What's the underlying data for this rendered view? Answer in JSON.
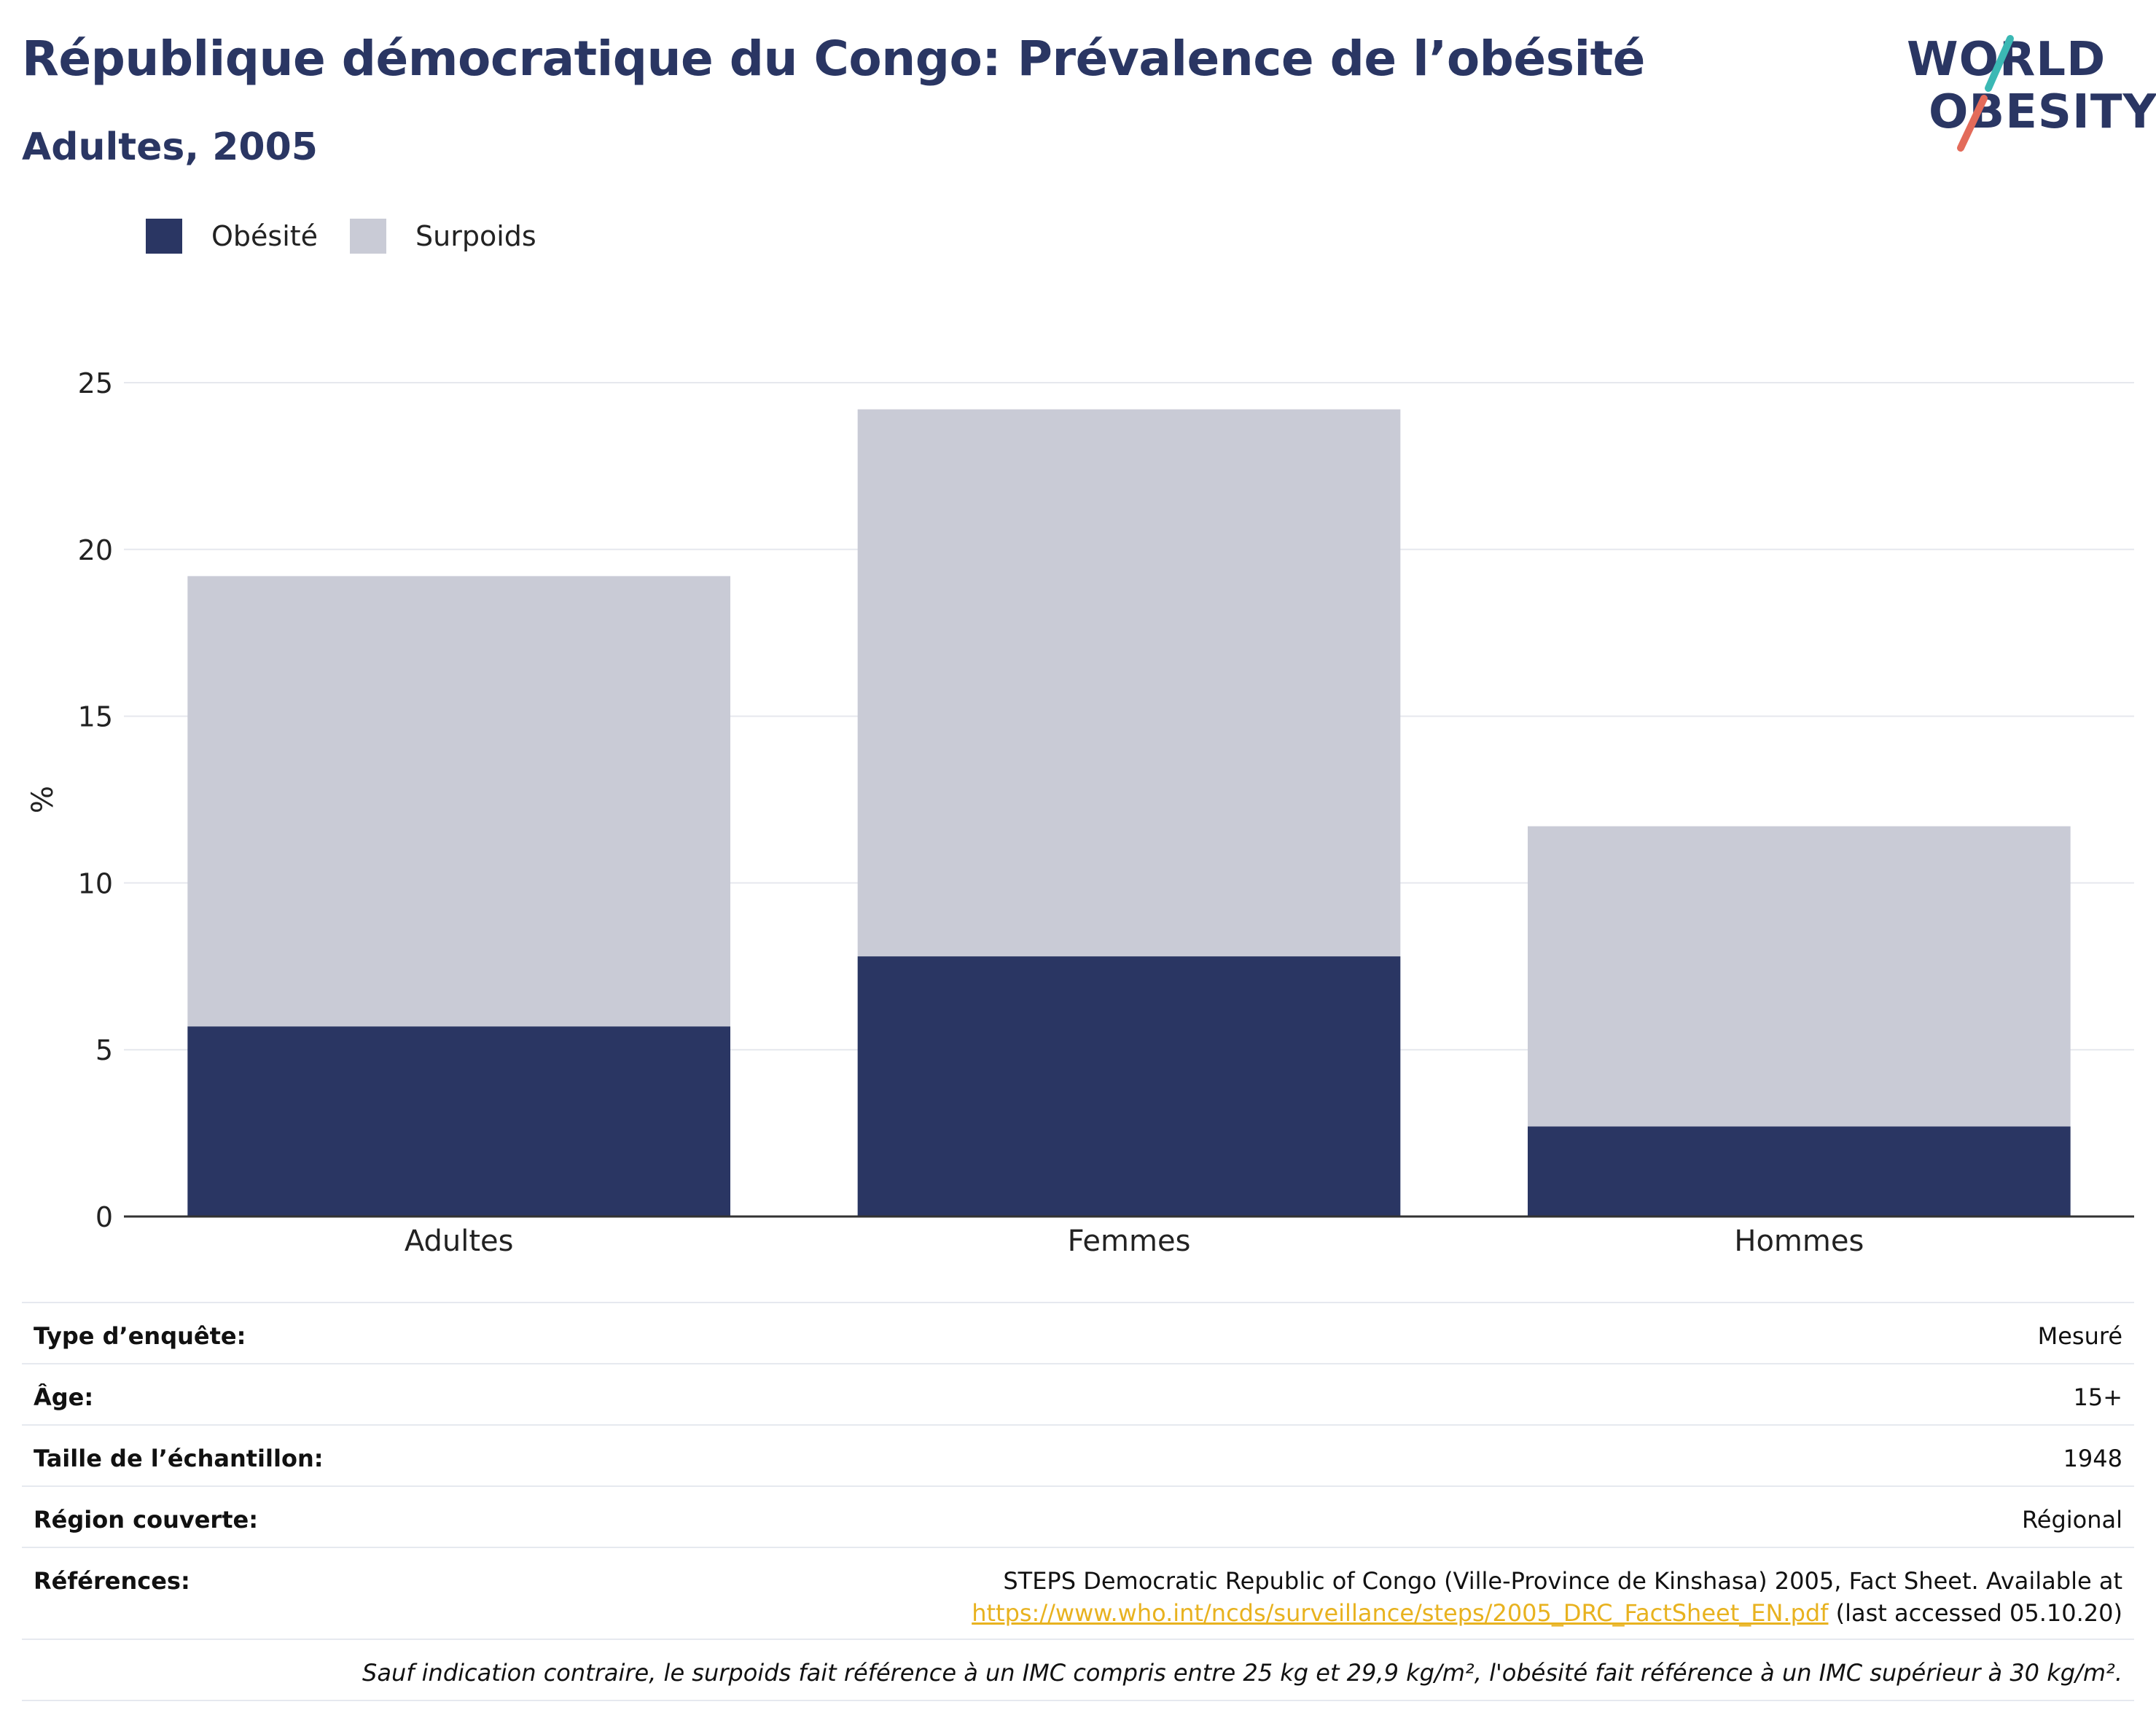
{
  "title": "République démocratique du Congo: Prévalence de l’obésité",
  "subtitle": "Adultes, 2005",
  "logo": {
    "line1": "WORLD",
    "line2": "OBESITY"
  },
  "colors": {
    "obesite": "#2a3663",
    "surpoids": "#c9cbd6",
    "accent_teal": "#3bb8b4",
    "accent_coral": "#e36b5a",
    "link": "#e8b21f"
  },
  "legend": [
    {
      "label": "Obésité",
      "color": "#2a3663"
    },
    {
      "label": "Surpoids",
      "color": "#c9cbd6"
    }
  ],
  "chart_data": {
    "type": "bar",
    "stacked": true,
    "categories": [
      "Adultes",
      "Femmes",
      "Hommes"
    ],
    "series": [
      {
        "name": "Obésité",
        "values": [
          5.7,
          7.8,
          2.7
        ]
      },
      {
        "name": "Surpoids",
        "values": [
          13.5,
          16.4,
          9.0
        ]
      }
    ],
    "ylabel": "%",
    "ylim": [
      0,
      25
    ],
    "yticks": [
      0,
      5,
      10,
      15,
      20,
      25
    ],
    "grid": true,
    "legend_position": "top-left"
  },
  "info": {
    "survey_type_label": "Type d’enquête:",
    "survey_type_value": "Mesuré",
    "age_label": "Âge:",
    "age_value": "15+",
    "sample_label": "Taille de l’échantillon:",
    "sample_value": "1948",
    "region_label": "Région couverte:",
    "region_value": "Régional",
    "references_label": "Références:",
    "references_line1": "STEPS Democratic Republic of Congo (Ville-Province de Kinshasa) 2005, Fact Sheet. Available at",
    "references_link": "https://www.who.int/ncds/surveillance/steps/2005_DRC_FactSheet_EN.pdf",
    "references_suffix": " (last accessed 05.10.20)",
    "note": "Sauf indication contraire, le surpoids fait référence à un IMC compris entre 25 kg et 29,9 kg/m², l'obésité fait référence à un IMC supérieur à 30 kg/m²."
  }
}
